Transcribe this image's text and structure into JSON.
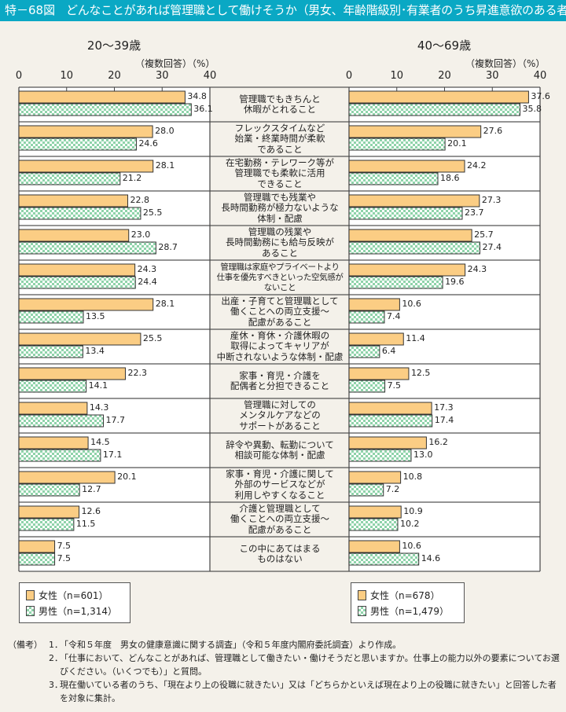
{
  "header": {
    "figure_number": "特－68図",
    "title": "どんなことがあれば管理職として働けそうか（男女、年齢階級別･有業者のうち昇進意欲のある者）"
  },
  "unit_note": "（複数回答）（%）",
  "legend": {
    "left": [
      {
        "label": "女性（n=601）",
        "series": "女性"
      },
      {
        "label": "男性（n=1,314）",
        "series": "男性"
      }
    ],
    "right": [
      {
        "label": "女性（n=678）",
        "series": "女性"
      },
      {
        "label": "男性（n=1,479）",
        "series": "男性"
      }
    ]
  },
  "colors": {
    "header": "#0aa8c4",
    "female": "#fbcd84",
    "male": "#8fd3aa",
    "background": "#f4f1ea"
  },
  "notes": {
    "lead": "（備考）",
    "items": [
      {
        "num": "1．",
        "text": "「令和５年度　男女の健康意識に関する調査」（令和５年度内閣府委託調査）より作成。"
      },
      {
        "num": "2．",
        "text": "「仕事において、どんなことがあれば、管理職として働きたい・働けそうだと思いますか。仕事上の能力以外の要素についてお選びください。（いくつでも）」と質問。"
      },
      {
        "num": "3．",
        "text": "現在働いている者のうち、「現在より上の役職に就きたい」又は「どちらかといえば現在より上の役職に就きたい」と回答した者を対象に集計。"
      }
    ]
  },
  "chart_data": [
    {
      "type": "bar",
      "orientation": "horizontal",
      "title": "20～39歳",
      "xlabel": "（複数回答）（%）",
      "xlim": [
        0,
        40
      ],
      "ticks": [
        0,
        10,
        20,
        30,
        40
      ],
      "grid": false,
      "legend_position": "bottom-left",
      "categories": [
        "管理職でもきちんと\n休暇がとれること",
        "フレックスタイムなど\n始業・終業時間が柔軟\nであること",
        "在宅勤務・テレワーク等が\n管理職でも柔軟に活用\nできること",
        "管理職でも残業や\n長時間勤務が極力ないような\n体制・配慮",
        "管理職の残業や\n長時間勤務にも給与反映が\nあること",
        "管理職は家庭やプライベートより\n仕事を優先すべきといった空気感が\nないこと",
        "出産・子育てと管理職として\n働くことへの両立支援～\n配慮があること",
        "産休・育休・介護休暇の\n取得によってキャリアが\n中断されないような体制・配慮",
        "家事・育児・介護を\n配偶者と分担できること",
        "管理職に対しての\nメンタルケアなどの\nサポートがあること",
        "辞令や異動、転勤について\n相談可能な体制・配慮",
        "家事・育児・介護に関して\n外部のサービスなどが\n利用しやすくなること",
        "介護と管理職として\n働くことへの両立支援～\n配慮があること",
        "この中にあてはまる\nものはない"
      ],
      "series": [
        {
          "name": "女性（n=601）",
          "values": [
            34.8,
            28.0,
            28.1,
            22.8,
            23.0,
            24.3,
            28.1,
            25.5,
            22.3,
            14.3,
            14.5,
            20.1,
            12.6,
            7.5
          ],
          "labels": [
            "34.8",
            "28.0",
            "28.1",
            "22.8",
            "23.0",
            "24.3",
            "28.1",
            "25.5",
            "22.3",
            "14.3",
            "14.5",
            "20.1",
            "12.6",
            "7.5"
          ]
        },
        {
          "name": "男性（n=1,314）",
          "values": [
            36.1,
            24.6,
            21.2,
            25.5,
            28.7,
            24.4,
            13.5,
            13.4,
            14.1,
            17.7,
            17.1,
            12.7,
            11.5,
            7.5
          ],
          "labels": [
            "36.1",
            "24.6",
            "21.2",
            "25.5",
            "28.7",
            "24.4",
            "13.5",
            "13.4",
            "14.1",
            "17.7",
            "17.1",
            "12.7",
            "11.5",
            "7.5"
          ]
        }
      ]
    },
    {
      "type": "bar",
      "orientation": "horizontal",
      "title": "40～69歳",
      "xlabel": "（複数回答）（%）",
      "xlim": [
        0,
        40
      ],
      "ticks": [
        0,
        10,
        20,
        30,
        40
      ],
      "grid": false,
      "legend_position": "bottom-right",
      "series": [
        {
          "name": "女性（n=678）",
          "values": [
            37.6,
            27.6,
            24.2,
            27.3,
            25.7,
            24.3,
            10.6,
            11.4,
            12.5,
            17.3,
            16.2,
            10.8,
            10.9,
            10.6
          ],
          "labels": [
            "37.6",
            "27.6",
            "24.2",
            "27.3",
            "25.7",
            "24.3",
            "10.6",
            "11.4",
            "12.5",
            "17.3",
            "16.2",
            "10.8",
            "10.9",
            "10.6"
          ]
        },
        {
          "name": "男性（n=1,479）",
          "values": [
            35.8,
            20.1,
            18.6,
            23.7,
            27.4,
            19.6,
            7.4,
            6.4,
            7.5,
            17.4,
            13.0,
            7.2,
            10.2,
            14.6
          ],
          "labels": [
            "35.8",
            "20.1",
            "18.6",
            "23.7",
            "27.4",
            "19.6",
            "7.4",
            "6.4",
            "7.5",
            "17.4",
            "13.0",
            "7.2",
            "10.2",
            "14.6"
          ]
        }
      ]
    }
  ]
}
